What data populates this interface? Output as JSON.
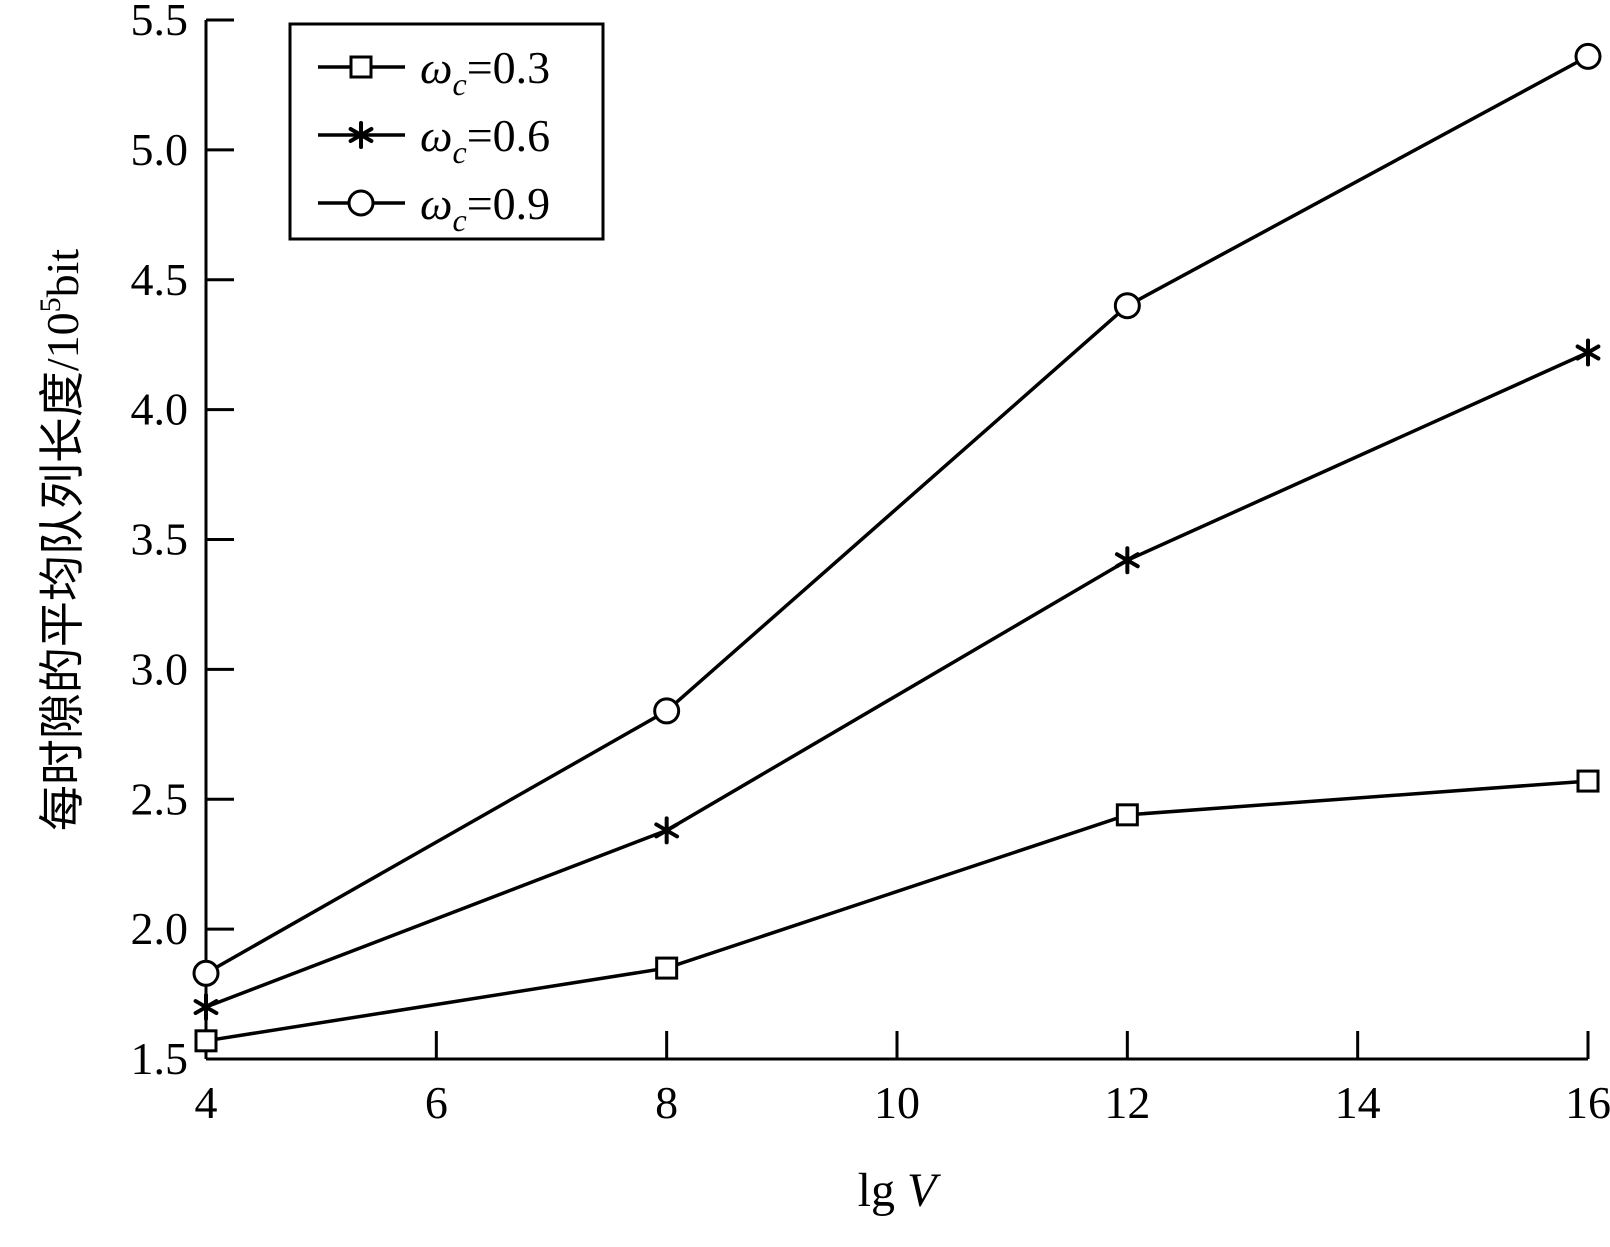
{
  "chart_data": {
    "type": "line",
    "x": [
      4,
      8,
      12,
      16
    ],
    "xlim": [
      4,
      16
    ],
    "ylim": [
      1.5,
      5.5
    ],
    "xticks": [
      4,
      6,
      8,
      10,
      12,
      14,
      16
    ],
    "yticks": [
      1.5,
      2.0,
      2.5,
      3.0,
      3.5,
      4.0,
      4.5,
      5.0,
      5.5
    ],
    "xtick_labels": [
      "4",
      "6",
      "8",
      "10",
      "12",
      "14",
      "16"
    ],
    "ytick_labels": [
      "1.5",
      "2.0",
      "2.5",
      "3.0",
      "3.5",
      "4.0",
      "4.5",
      "5.0",
      "5.5"
    ],
    "xlabel": {
      "prefix": "lg ",
      "var": "V"
    },
    "ylabel": {
      "text": "每时隙的平均队列长度/10",
      "sup": "5",
      "unit": "bit"
    },
    "grid": false,
    "legend_position": "top-left",
    "line_color": "#000000",
    "series": [
      {
        "name": "ωc=0.3",
        "sym": "ω",
        "sub": "c",
        "val": "=0.3",
        "marker": "square",
        "values": [
          1.57,
          1.85,
          2.44,
          2.57
        ]
      },
      {
        "name": "ωc=0.6",
        "sym": "ω",
        "sub": "c",
        "val": "=0.6",
        "marker": "asterisk",
        "values": [
          1.7,
          2.38,
          3.42,
          4.22
        ]
      },
      {
        "name": "ωc=0.9",
        "sym": "ω",
        "sub": "c",
        "val": "=0.9",
        "marker": "circle",
        "values": [
          1.83,
          2.84,
          4.4,
          5.36
        ]
      }
    ]
  }
}
